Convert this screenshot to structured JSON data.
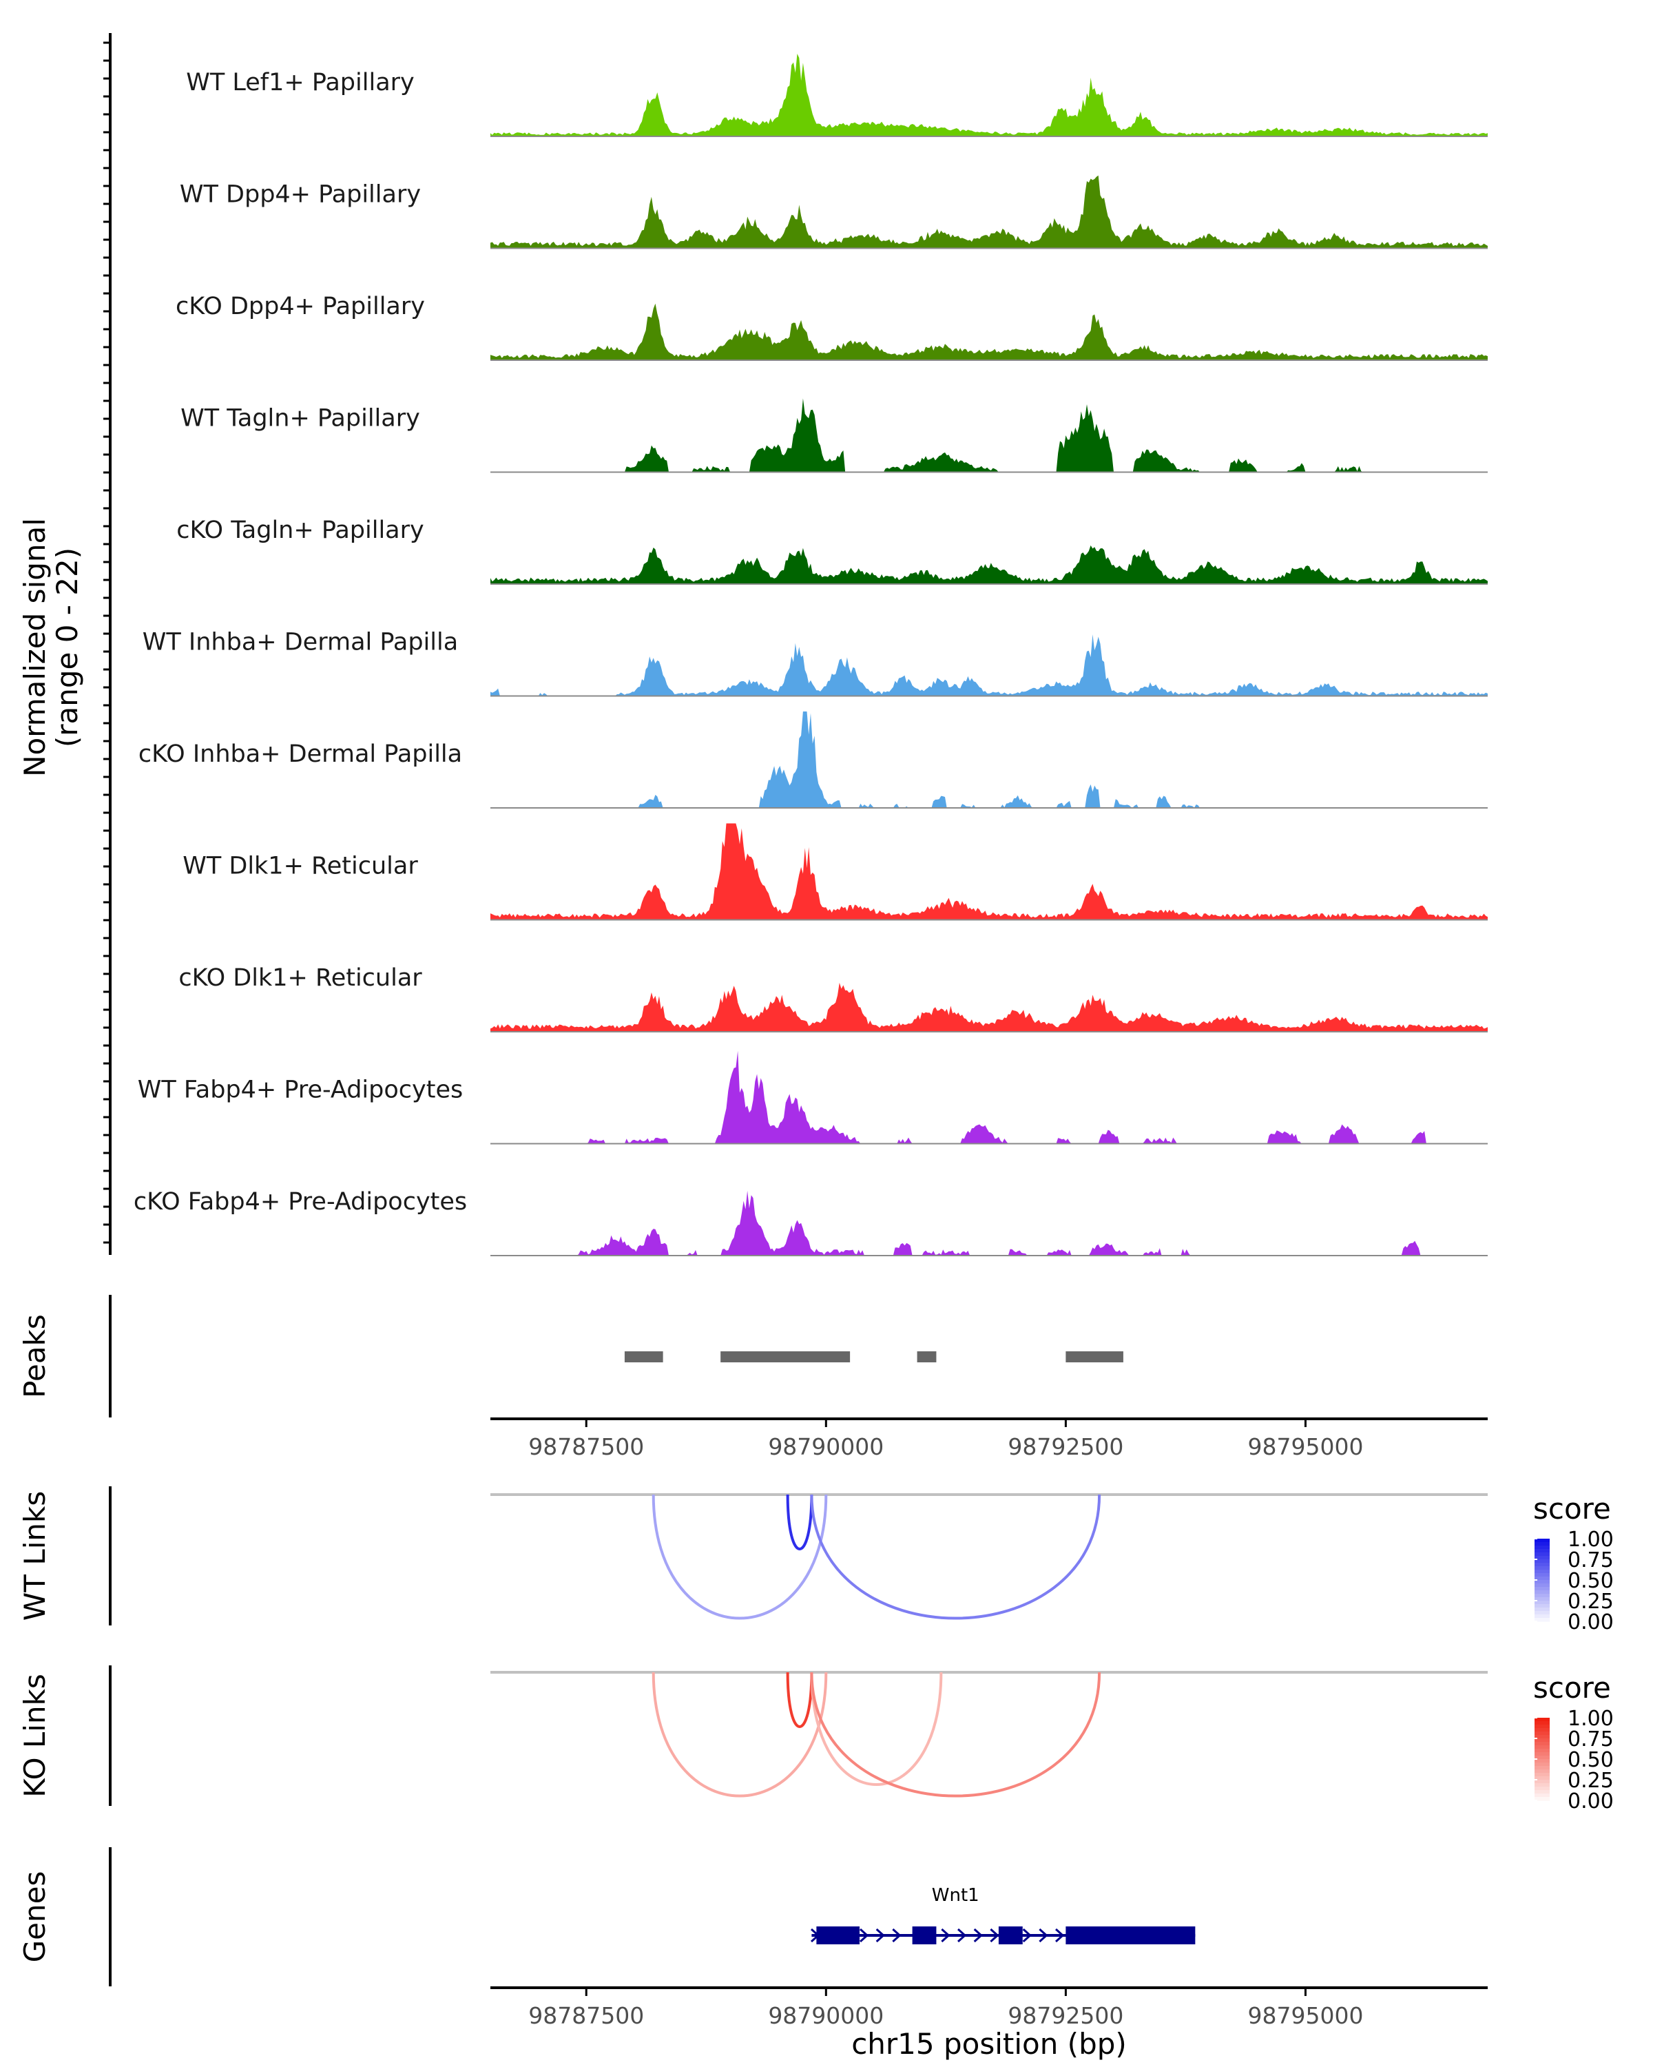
{
  "chart_data": {
    "type": "area",
    "title": "",
    "region": "chr15",
    "xlabel": "chr15 position (bp)",
    "xlim": [
      98786500,
      98796900
    ],
    "x_ticks": [
      98787500,
      98790000,
      98792500,
      98795000
    ],
    "x_tick_labels": [
      "98787500",
      "98790000",
      "98792500",
      "98795000"
    ],
    "coverage": {
      "ylabel_line1": "Normalized signal",
      "ylabel_line2": "(range 0 - 22)",
      "ylim": [
        0,
        22
      ],
      "tracks": [
        {
          "name": "WT Lef1+ Papillary",
          "color": "#6ACC00",
          "floor": 0.3,
          "noise": 0.6,
          "gaps": [],
          "peaks": [
            [
              98788200,
              9,
              80
            ],
            [
              98789000,
              3,
              140
            ],
            [
              98789700,
              14,
              90
            ],
            [
              98789500,
              3,
              250
            ],
            [
              98790300,
              2,
              300
            ],
            [
              98791000,
              1.5,
              400
            ],
            [
              98792450,
              5,
              90
            ],
            [
              98792800,
              11,
              120
            ],
            [
              98793300,
              4,
              90
            ],
            [
              98794700,
              1,
              200
            ],
            [
              98795400,
              1,
              200
            ]
          ]
        },
        {
          "name": "WT Dpp4+ Papillary",
          "color": "#4A8A00",
          "floor": 0.5,
          "noise": 1.0,
          "gaps": [],
          "peaks": [
            [
              98788200,
              9,
              80
            ],
            [
              98788700,
              3,
              100
            ],
            [
              98789200,
              5,
              120
            ],
            [
              98789700,
              7,
              90
            ],
            [
              98790400,
              2,
              200
            ],
            [
              98791200,
              3,
              150
            ],
            [
              98791800,
              3,
              150
            ],
            [
              98792400,
              5,
              100
            ],
            [
              98792800,
              17,
              100
            ],
            [
              98793300,
              4,
              120
            ],
            [
              98794000,
              2,
              100
            ],
            [
              98794700,
              3,
              100
            ],
            [
              98795300,
              2,
              100
            ]
          ]
        },
        {
          "name": "cKO Dpp4+ Papillary",
          "color": "#4A8A00",
          "floor": 0.5,
          "noise": 0.9,
          "gaps": [],
          "peaks": [
            [
              98788200,
              10,
              80
            ],
            [
              98787700,
              2,
              150
            ],
            [
              98789200,
              6,
              200
            ],
            [
              98789700,
              7,
              100
            ],
            [
              98790300,
              3,
              200
            ],
            [
              98791200,
              2,
              200
            ],
            [
              98792000,
              1.5,
              300
            ],
            [
              98792800,
              8,
              90
            ],
            [
              98793300,
              2,
              100
            ],
            [
              98794500,
              1,
              200
            ]
          ]
        },
        {
          "name": "WT Tagln+ Papillary",
          "color": "#006400",
          "floor": 0.2,
          "noise": 1.2,
          "gaps": [
            [
              98786500,
              98787900
            ],
            [
              98788350,
              98788600
            ],
            [
              98789000,
              98789200
            ],
            [
              98790200,
              98790600
            ],
            [
              98791800,
              98792400
            ],
            [
              98793000,
              98793200
            ],
            [
              98793900,
              98794200
            ],
            [
              98794500,
              98794800
            ],
            [
              98795000,
              98795300
            ],
            [
              98795600,
              98796900
            ]
          ],
          "peaks": [
            [
              98788200,
              4,
              100
            ],
            [
              98789400,
              5,
              150
            ],
            [
              98789800,
              14,
              100
            ],
            [
              98790200,
              3,
              100
            ],
            [
              98791200,
              3,
              200
            ],
            [
              98792700,
              12,
              200
            ],
            [
              98793400,
              4,
              120
            ],
            [
              98794300,
              2,
              100
            ],
            [
              98795100,
              2,
              100
            ]
          ]
        },
        {
          "name": "cKO Tagln+ Papillary",
          "color": "#006400",
          "floor": 0.5,
          "noise": 1.0,
          "gaps": [],
          "peaks": [
            [
              98788200,
              6,
              90
            ],
            [
              98789200,
              5,
              120
            ],
            [
              98789700,
              7,
              100
            ],
            [
              98790300,
              2,
              200
            ],
            [
              98791000,
              2,
              100
            ],
            [
              98791700,
              3,
              150
            ],
            [
              98792800,
              7,
              150
            ],
            [
              98793300,
              6,
              120
            ],
            [
              98794000,
              3,
              150
            ],
            [
              98795000,
              3,
              150
            ],
            [
              98796200,
              4,
              60
            ]
          ]
        },
        {
          "name": "WT Inhba+ Dermal Papilla",
          "color": "#56A5E6",
          "floor": 0.2,
          "noise": 0.8,
          "gaps": [
            [
              98786600,
              98787000
            ],
            [
              98787100,
              98787800
            ]
          ],
          "peaks": [
            [
              98786600,
              1,
              40
            ],
            [
              98788200,
              9,
              80
            ],
            [
              98789200,
              3,
              150
            ],
            [
              98789700,
              10,
              80
            ],
            [
              98790200,
              7,
              120
            ],
            [
              98790800,
              4,
              80
            ],
            [
              98791200,
              3,
              100
            ],
            [
              98791500,
              3,
              80
            ],
            [
              98792400,
              2,
              200
            ],
            [
              98792800,
              12,
              80
            ],
            [
              98793400,
              2,
              100
            ],
            [
              98794400,
              2,
              100
            ],
            [
              98795200,
              2,
              100
            ]
          ]
        },
        {
          "name": "cKO Inhba+ Dermal Papilla",
          "color": "#56A5E6",
          "floor": 0.0,
          "noise": 0.8,
          "gaps": [
            [
              98786500,
              98788050
            ],
            [
              98788300,
              98789300
            ],
            [
              98790150,
              98790350
            ],
            [
              98790500,
              98790700
            ],
            [
              98790850,
              98791100
            ],
            [
              98791250,
              98791400
            ],
            [
              98791550,
              98791800
            ],
            [
              98792150,
              98792400
            ],
            [
              98792550,
              98792700
            ],
            [
              98792850,
              98793000
            ],
            [
              98793250,
              98793450
            ],
            [
              98793600,
              98793700
            ],
            [
              98793900,
              98796900
            ]
          ],
          "peaks": [
            [
              98788200,
              2,
              60
            ],
            [
              98789500,
              8,
              100
            ],
            [
              98789800,
              21,
              80
            ],
            [
              98790200,
              2,
              80
            ],
            [
              98790600,
              2,
              60
            ],
            [
              98791200,
              2,
              100
            ],
            [
              98792000,
              2,
              60
            ],
            [
              98792800,
              4,
              150
            ],
            [
              98793500,
              2,
              60
            ]
          ]
        },
        {
          "name": "WT Dlk1+ Reticular",
          "color": "#FF3030",
          "floor": 0.5,
          "noise": 1.0,
          "gaps": [],
          "peaks": [
            [
              98788200,
              6,
              90
            ],
            [
              98789000,
              17,
              100
            ],
            [
              98789200,
              10,
              150
            ],
            [
              98789800,
              13,
              80
            ],
            [
              98790300,
              2,
              200
            ],
            [
              98791300,
              3,
              200
            ],
            [
              98792800,
              6,
              100
            ],
            [
              98793500,
              1,
              200
            ],
            [
              98796200,
              2,
              50
            ]
          ]
        },
        {
          "name": "cKO Dlk1+ Reticular",
          "color": "#FF3030",
          "floor": 0.7,
          "noise": 1.0,
          "gaps": [],
          "peaks": [
            [
              98788200,
              8,
              80
            ],
            [
              98789000,
              9,
              100
            ],
            [
              98789500,
              6,
              150
            ],
            [
              98790200,
              9,
              120
            ],
            [
              98791200,
              4,
              200
            ],
            [
              98792000,
              3,
              150
            ],
            [
              98792800,
              6,
              150
            ],
            [
              98793400,
              3,
              150
            ],
            [
              98794200,
              2,
              200
            ],
            [
              98795300,
              2,
              150
            ]
          ]
        },
        {
          "name": "WT Fabp4+ Pre-Adipocytes",
          "color": "#A82EE8",
          "floor": 0.2,
          "noise": 1.2,
          "gaps": [
            [
              98786500,
              98787500
            ],
            [
              98787700,
              98787900
            ],
            [
              98788350,
              98788850
            ],
            [
              98790350,
              98790750
            ],
            [
              98790900,
              98791400
            ],
            [
              98791900,
              98792400
            ],
            [
              98792550,
              98792850
            ],
            [
              98793050,
              98793300
            ],
            [
              98793650,
              98794600
            ],
            [
              98794950,
              98795250
            ],
            [
              98795550,
              98796100
            ],
            [
              98796250,
              98796900
            ]
          ],
          "peaks": [
            [
              98789050,
              18,
              70
            ],
            [
              98789300,
              14,
              70
            ],
            [
              98789650,
              9,
              100
            ],
            [
              98790000,
              3,
              150
            ],
            [
              98791600,
              4,
              80
            ],
            [
              98792950,
              2,
              60
            ],
            [
              98794750,
              2,
              100
            ],
            [
              98795400,
              3,
              80
            ],
            [
              98796200,
              2,
              50
            ]
          ]
        },
        {
          "name": "cKO Fabp4+ Pre-Adipocytes",
          "color": "#A82EE8",
          "floor": 0.2,
          "noise": 1.2,
          "gaps": [
            [
              98786500,
              98787400
            ],
            [
              98788350,
              98788550
            ],
            [
              98788650,
              98788900
            ],
            [
              98790400,
              98790700
            ],
            [
              98790900,
              98791000
            ],
            [
              98791500,
              98791900
            ],
            [
              98792100,
              98792300
            ],
            [
              98792550,
              98792750
            ],
            [
              98793150,
              98793300
            ],
            [
              98793500,
              98793700
            ],
            [
              98793800,
              98796000
            ],
            [
              98796200,
              98796900
            ]
          ],
          "peaks": [
            [
              98788200,
              5,
              80
            ],
            [
              98787800,
              3,
              100
            ],
            [
              98789200,
              12,
              100
            ],
            [
              98789700,
              7,
              80
            ],
            [
              98790800,
              2,
              80
            ],
            [
              98791800,
              2,
              80
            ],
            [
              98792900,
              2,
              80
            ],
            [
              98793600,
              2,
              60
            ],
            [
              98796100,
              2,
              60
            ]
          ]
        }
      ]
    },
    "peaks": {
      "label": "Peaks",
      "color": "#666666",
      "intervals": [
        [
          98787900,
          98788300
        ],
        [
          98788900,
          98790250
        ],
        [
          98790950,
          98791150
        ],
        [
          98792500,
          98793100
        ]
      ]
    },
    "wt_links": {
      "label": "WT Links",
      "legend_title": "score",
      "scale_ticks": [
        1.0,
        0.75,
        0.5,
        0.25,
        0.0
      ],
      "scale_tick_labels": [
        "1.00",
        "0.75",
        "0.50",
        "0.25",
        "0.00"
      ],
      "low_color": "#FFFFFF",
      "high_color": "#1010E8",
      "links": [
        {
          "start": 98788200,
          "end": 98790000,
          "score": 0.3
        },
        {
          "start": 98789600,
          "end": 98789850,
          "score": 0.75
        },
        {
          "start": 98789850,
          "end": 98792850,
          "score": 0.45
        }
      ]
    },
    "ko_links": {
      "label": "KO Links",
      "legend_title": "score",
      "scale_ticks": [
        1.0,
        0.75,
        0.5,
        0.25,
        0.0
      ],
      "scale_tick_labels": [
        "1.00",
        "0.75",
        "0.50",
        "0.25",
        "0.00"
      ],
      "low_color": "#FFFFFF",
      "high_color": "#F02010",
      "links": [
        {
          "start": 98788200,
          "end": 98790000,
          "score": 0.3
        },
        {
          "start": 98789600,
          "end": 98789850,
          "score": 0.75
        },
        {
          "start": 98789850,
          "end": 98791200,
          "score": 0.25
        },
        {
          "start": 98789850,
          "end": 98792850,
          "score": 0.45
        }
      ]
    },
    "genes": {
      "label": "Genes",
      "color": "#00008B",
      "gene": {
        "name": "Wnt1",
        "strand": "+",
        "start": 98789850,
        "end": 98793850,
        "exons": [
          [
            98789900,
            98790350
          ],
          [
            98790900,
            98791150
          ],
          [
            98791800,
            98792050
          ],
          [
            98792500,
            98793850
          ]
        ]
      }
    }
  }
}
